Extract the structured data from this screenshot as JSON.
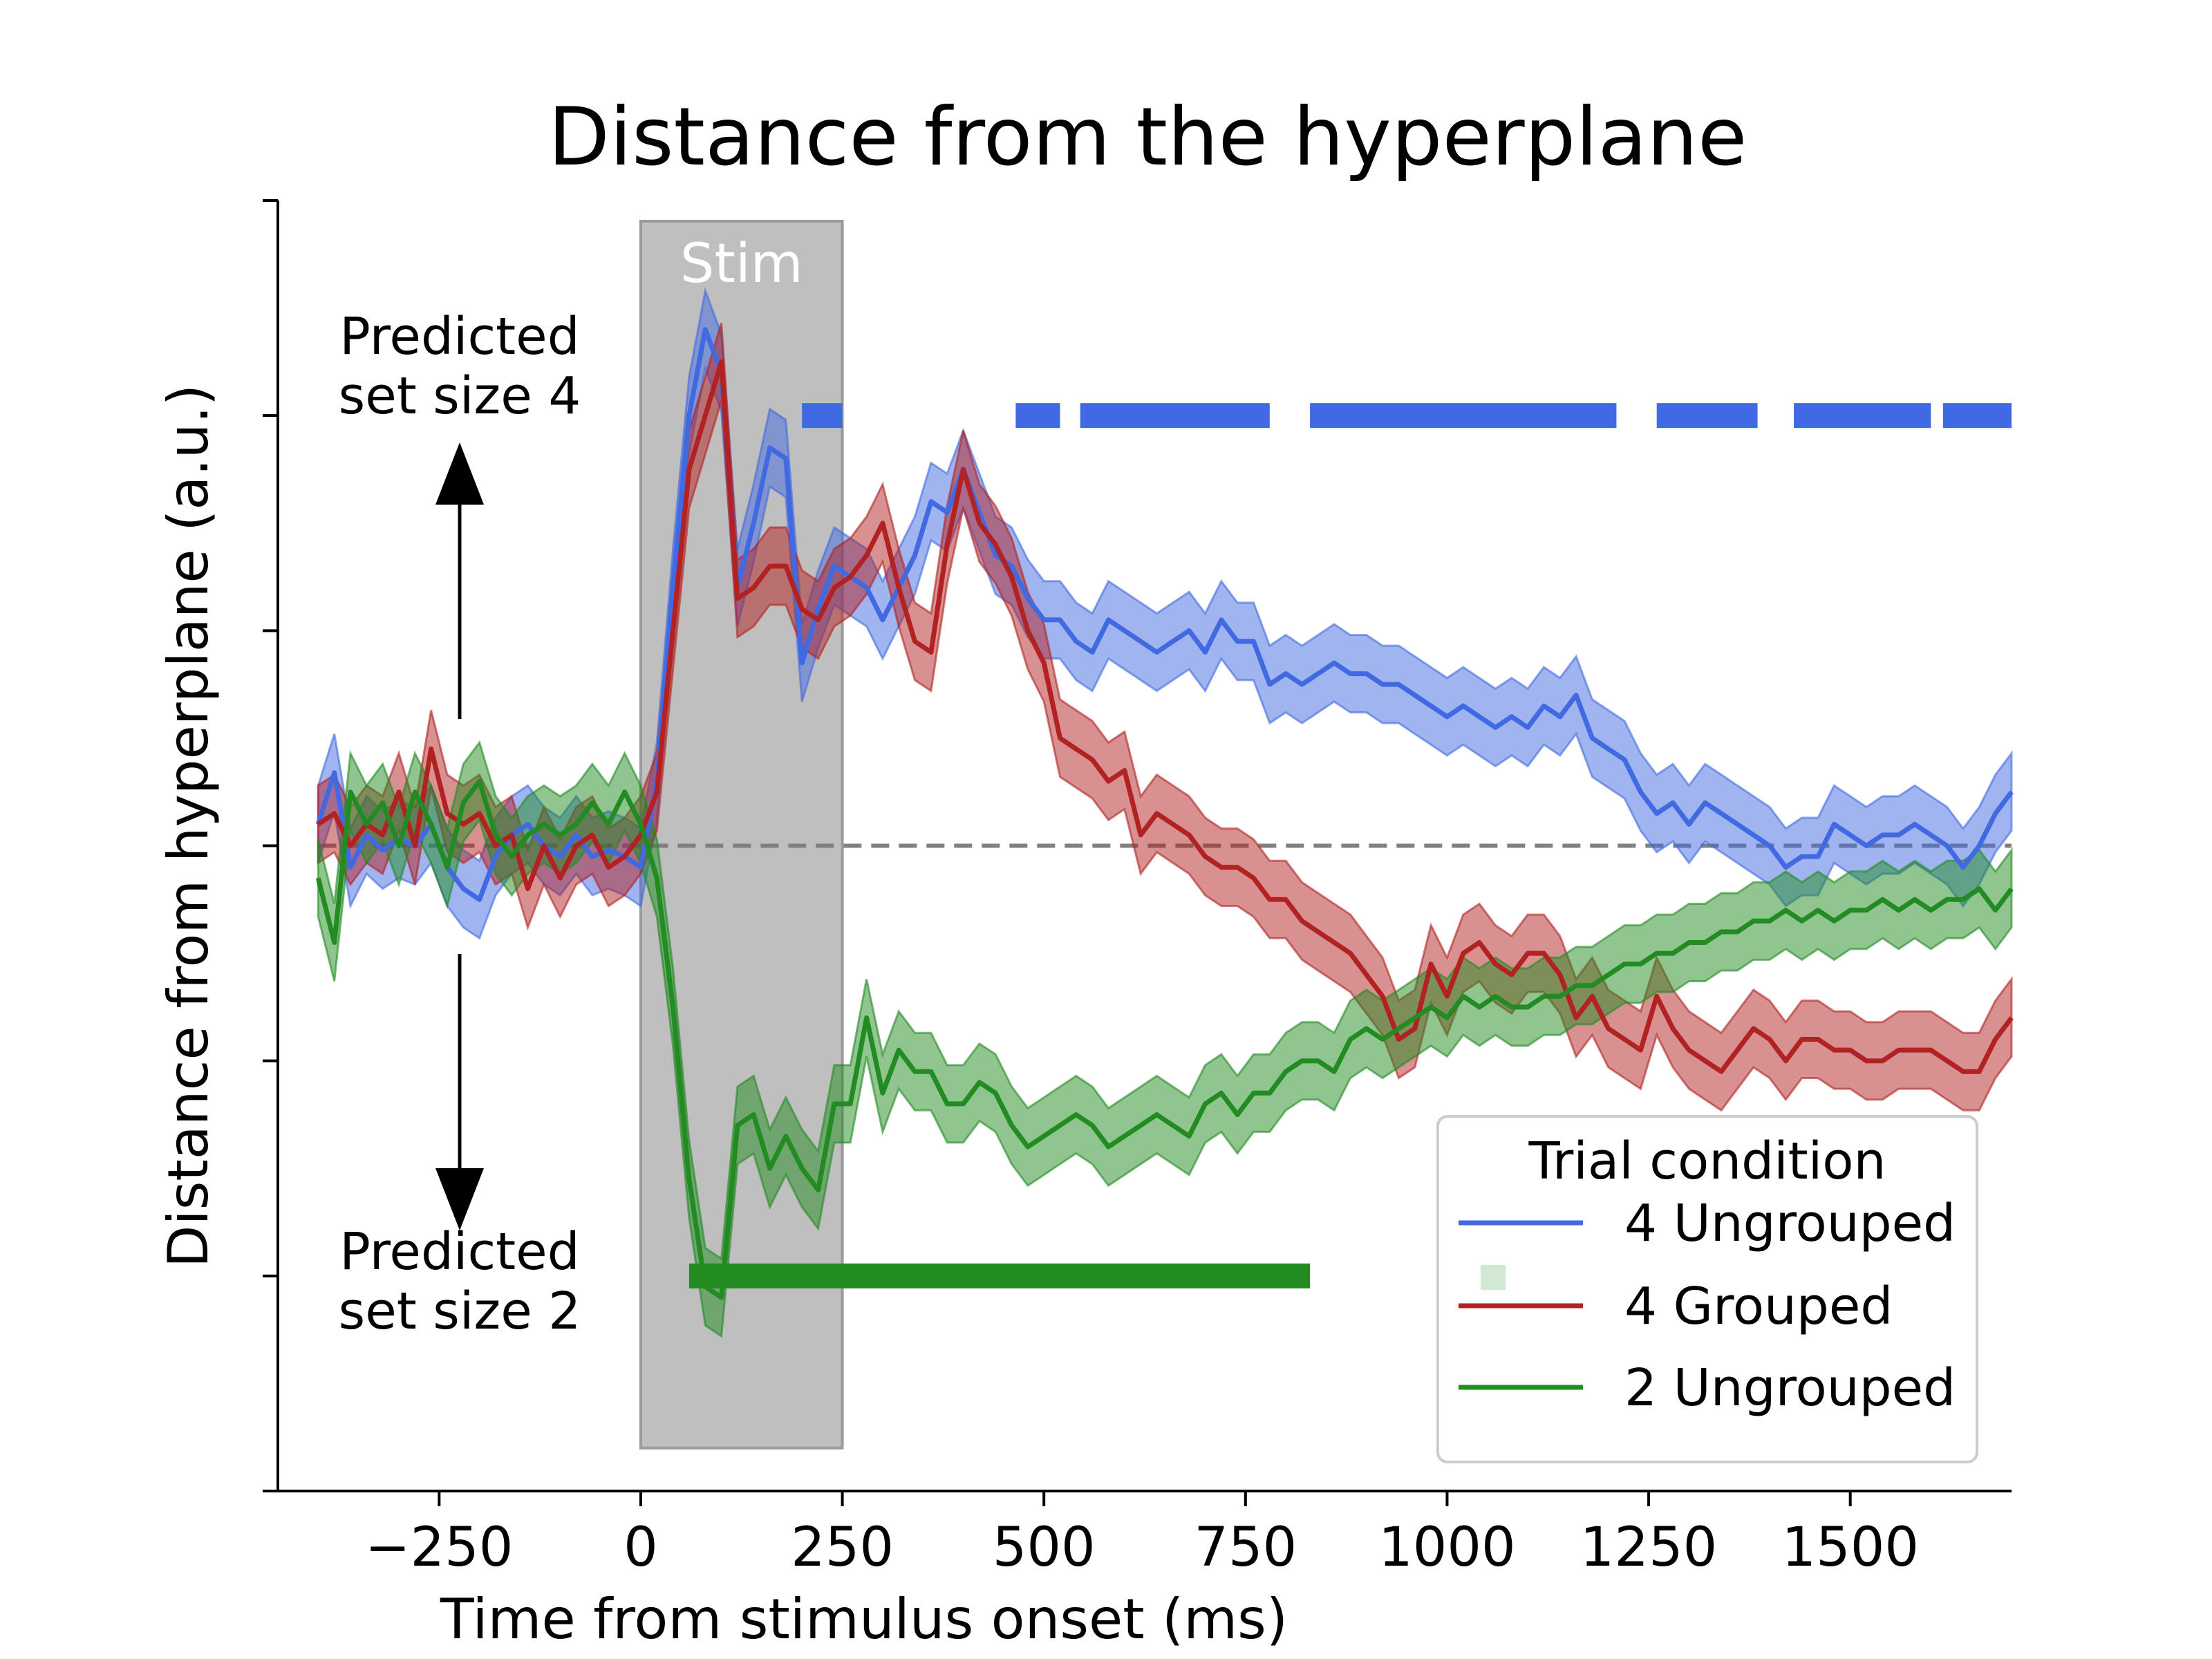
{
  "chart_data": {
    "type": "line",
    "title": "Distance from the hyperplane",
    "xlabel": "Time from stimulus onset (ms)",
    "ylabel": "Distance from hyperplane (a.u.)",
    "xlim": [
      -450,
      1700
    ],
    "ylim": [
      -3.0,
      3.0
    ],
    "xticks": [
      -250,
      0,
      250,
      500,
      750,
      1000,
      1250,
      1500
    ],
    "xtick_labels": [
      "−250",
      "0",
      "250",
      "500",
      "750",
      "1000",
      "1250",
      "1500"
    ],
    "yticks": [
      -3,
      -2,
      -1,
      0,
      1,
      2,
      3
    ],
    "show_ytick_labels": false,
    "grid": false,
    "zero_line": {
      "y": 0,
      "color": "#808080",
      "style": "dashed"
    },
    "stim_window": {
      "x0": 0,
      "x1": 250,
      "label": "Stim",
      "color": "#bfbfbf"
    },
    "annotations": {
      "up_line1": "Predicted",
      "up_line2": "set size 4",
      "down_line1": "Predicted",
      "down_line2": "set size 2"
    },
    "legend": {
      "title": "Trial condition",
      "position": "lower-right"
    },
    "x": [
      -400,
      -380,
      -360,
      -340,
      -320,
      -300,
      -280,
      -260,
      -240,
      -220,
      -200,
      -180,
      -160,
      -140,
      -120,
      -100,
      -80,
      -60,
      -40,
      -20,
      0,
      20,
      40,
      60,
      80,
      100,
      120,
      140,
      160,
      180,
      200,
      220,
      240,
      260,
      280,
      300,
      320,
      340,
      360,
      380,
      400,
      420,
      440,
      460,
      480,
      500,
      520,
      540,
      560,
      580,
      600,
      620,
      640,
      660,
      680,
      700,
      720,
      740,
      760,
      780,
      800,
      820,
      840,
      860,
      880,
      900,
      920,
      940,
      960,
      980,
      1000,
      1020,
      1040,
      1060,
      1080,
      1100,
      1120,
      1140,
      1160,
      1180,
      1200,
      1220,
      1240,
      1260,
      1280,
      1300,
      1320,
      1340,
      1360,
      1380,
      1400,
      1420,
      1440,
      1460,
      1480,
      1500,
      1520,
      1540,
      1560,
      1580,
      1600,
      1620,
      1640,
      1660,
      1680,
      1700
    ],
    "series": [
      {
        "name": "4 Ungrouped",
        "color": "#4169e1",
        "values": [
          0.1,
          0.34,
          -0.1,
          0.05,
          -0.02,
          0.03,
          0.0,
          0.1,
          -0.1,
          -0.2,
          -0.25,
          -0.05,
          0.05,
          0.1,
          0.0,
          -0.05,
          0.05,
          -0.05,
          -0.02,
          -0.05,
          -0.1,
          0.3,
          1.2,
          2.0,
          2.4,
          2.2,
          1.2,
          1.5,
          1.85,
          1.8,
          0.85,
          1.1,
          1.3,
          1.25,
          1.2,
          1.05,
          1.2,
          1.35,
          1.6,
          1.55,
          1.75,
          1.55,
          1.35,
          1.3,
          1.15,
          1.05,
          1.05,
          0.95,
          0.9,
          1.05,
          1.0,
          0.95,
          0.9,
          0.95,
          1.0,
          0.9,
          1.05,
          0.95,
          0.95,
          0.75,
          0.8,
          0.75,
          0.8,
          0.85,
          0.8,
          0.8,
          0.75,
          0.75,
          0.7,
          0.65,
          0.6,
          0.65,
          0.6,
          0.55,
          0.6,
          0.55,
          0.65,
          0.6,
          0.7,
          0.5,
          0.45,
          0.4,
          0.25,
          0.15,
          0.2,
          0.1,
          0.2,
          0.15,
          0.1,
          0.05,
          0.0,
          -0.1,
          -0.05,
          -0.05,
          0.1,
          0.05,
          0.0,
          0.05,
          0.05,
          0.1,
          0.05,
          0.0,
          -0.1,
          0.0,
          0.15,
          0.25
        ]
      },
      {
        "name": "4 Grouped",
        "color": "#b22222",
        "values": [
          0.1,
          0.15,
          0.0,
          0.1,
          0.05,
          0.25,
          0.0,
          0.45,
          0.15,
          0.1,
          0.15,
          0.0,
          0.05,
          -0.2,
          0.0,
          -0.15,
          0.0,
          0.05,
          -0.1,
          -0.05,
          0.05,
          0.25,
          1.0,
          1.75,
          2.0,
          2.25,
          1.15,
          1.2,
          1.3,
          1.3,
          1.1,
          1.05,
          1.2,
          1.25,
          1.35,
          1.5,
          1.2,
          0.95,
          0.9,
          1.4,
          1.75,
          1.5,
          1.4,
          1.25,
          1.0,
          0.85,
          0.5,
          0.45,
          0.4,
          0.3,
          0.35,
          0.05,
          0.15,
          0.1,
          0.05,
          -0.05,
          -0.1,
          -0.1,
          -0.15,
          -0.25,
          -0.25,
          -0.35,
          -0.4,
          -0.45,
          -0.5,
          -0.6,
          -0.7,
          -0.9,
          -0.85,
          -0.55,
          -0.7,
          -0.5,
          -0.45,
          -0.55,
          -0.6,
          -0.5,
          -0.5,
          -0.6,
          -0.8,
          -0.7,
          -0.85,
          -0.9,
          -0.95,
          -0.7,
          -0.85,
          -0.95,
          -1.0,
          -1.05,
          -0.95,
          -0.85,
          -0.9,
          -1.0,
          -0.9,
          -0.9,
          -0.95,
          -0.95,
          -1.0,
          -1.0,
          -0.95,
          -0.95,
          -0.95,
          -1.0,
          -1.05,
          -1.05,
          -0.9,
          -0.8
        ]
      },
      {
        "name": "2 Ungrouped",
        "color": "#228b22",
        "values": [
          -0.15,
          -0.45,
          0.25,
          0.1,
          0.2,
          0.0,
          0.25,
          0.1,
          -0.1,
          0.2,
          0.3,
          0.05,
          -0.05,
          0.05,
          0.1,
          0.05,
          0.1,
          0.2,
          0.1,
          0.25,
          0.1,
          -0.15,
          -0.75,
          -1.55,
          -2.05,
          -2.1,
          -1.3,
          -1.25,
          -1.5,
          -1.35,
          -1.5,
          -1.6,
          -1.2,
          -1.2,
          -0.8,
          -1.15,
          -0.95,
          -1.05,
          -1.05,
          -1.2,
          -1.2,
          -1.1,
          -1.15,
          -1.3,
          -1.4,
          -1.35,
          -1.3,
          -1.25,
          -1.3,
          -1.4,
          -1.35,
          -1.3,
          -1.25,
          -1.3,
          -1.35,
          -1.2,
          -1.15,
          -1.25,
          -1.15,
          -1.15,
          -1.05,
          -1.0,
          -1.0,
          -1.05,
          -0.9,
          -0.85,
          -0.9,
          -0.85,
          -0.8,
          -0.75,
          -0.8,
          -0.7,
          -0.75,
          -0.7,
          -0.75,
          -0.75,
          -0.7,
          -0.7,
          -0.65,
          -0.65,
          -0.6,
          -0.55,
          -0.55,
          -0.5,
          -0.5,
          -0.45,
          -0.45,
          -0.4,
          -0.4,
          -0.35,
          -0.35,
          -0.3,
          -0.35,
          -0.3,
          -0.35,
          -0.3,
          -0.3,
          -0.25,
          -0.3,
          -0.25,
          -0.3,
          -0.25,
          -0.25,
          -0.2,
          -0.3,
          -0.2
        ]
      }
    ],
    "significance_bars": [
      {
        "series": "4 Ungrouped",
        "color": "#4169e1",
        "y": 2.0,
        "segments": [
          [
            200,
            250
          ],
          [
            465,
            520
          ],
          [
            545,
            780
          ],
          [
            830,
            1210
          ],
          [
            1260,
            1385
          ],
          [
            1430,
            1600
          ],
          [
            1615,
            1700
          ]
        ]
      },
      {
        "series": "2 Ungrouped",
        "color": "#228b22",
        "y": -2.0,
        "segments": [
          [
            60,
            830
          ]
        ]
      }
    ]
  }
}
